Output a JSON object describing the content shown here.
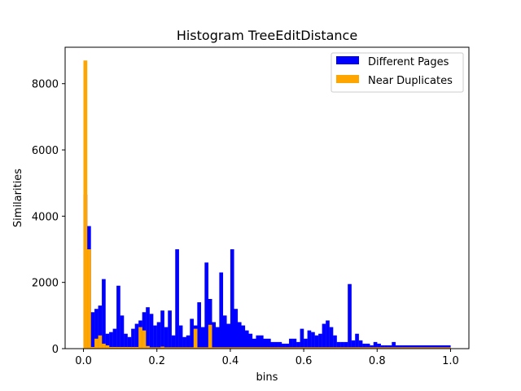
{
  "chart_data": {
    "type": "bar",
    "title": "Histogram TreeEditDistance",
    "xlabel": "bins",
    "ylabel": "Similarities",
    "xlim": [
      -0.05,
      1.05
    ],
    "ylim": [
      0,
      9100
    ],
    "xticks": [
      0.0,
      0.2,
      0.4,
      0.6,
      0.8,
      1.0
    ],
    "xtick_labels": [
      "0.0",
      "0.2",
      "0.4",
      "0.6",
      "0.8",
      "1.0"
    ],
    "yticks": [
      0,
      2000,
      4000,
      6000,
      8000
    ],
    "ytick_labels": [
      "0",
      "2000",
      "4000",
      "6000",
      "8000"
    ],
    "grid": false,
    "legend_position": "top-right",
    "bin_width": 0.01,
    "bin_starts": [
      0.0,
      0.01,
      0.02,
      0.03,
      0.04,
      0.05,
      0.06,
      0.07,
      0.08,
      0.09,
      0.1,
      0.11,
      0.12,
      0.13,
      0.14,
      0.15,
      0.16,
      0.17,
      0.18,
      0.19,
      0.2,
      0.21,
      0.22,
      0.23,
      0.24,
      0.25,
      0.26,
      0.27,
      0.28,
      0.29,
      0.3,
      0.31,
      0.32,
      0.33,
      0.34,
      0.35,
      0.36,
      0.37,
      0.38,
      0.39,
      0.4,
      0.41,
      0.42,
      0.43,
      0.44,
      0.45,
      0.46,
      0.47,
      0.48,
      0.49,
      0.5,
      0.51,
      0.52,
      0.53,
      0.54,
      0.55,
      0.56,
      0.57,
      0.58,
      0.59,
      0.6,
      0.61,
      0.62,
      0.63,
      0.64,
      0.65,
      0.66,
      0.67,
      0.68,
      0.69,
      0.7,
      0.71,
      0.72,
      0.73,
      0.74,
      0.75,
      0.76,
      0.77,
      0.78,
      0.79,
      0.8,
      0.81,
      0.82,
      0.83,
      0.84,
      0.85,
      0.86,
      0.87,
      0.88,
      0.89,
      0.9,
      0.91,
      0.92,
      0.93,
      0.94,
      0.95,
      0.96,
      0.97,
      0.98,
      0.99
    ],
    "series": [
      {
        "name": "Different Pages",
        "color": "#0000ff",
        "values": [
          4650,
          3700,
          1100,
          1200,
          1300,
          2100,
          450,
          500,
          600,
          1900,
          1000,
          450,
          350,
          600,
          750,
          850,
          1100,
          1250,
          1050,
          700,
          800,
          1150,
          650,
          1150,
          400,
          3000,
          700,
          350,
          400,
          900,
          700,
          1400,
          650,
          2600,
          1500,
          800,
          650,
          2300,
          1000,
          750,
          3000,
          1200,
          800,
          700,
          550,
          450,
          300,
          400,
          400,
          300,
          300,
          200,
          200,
          200,
          150,
          150,
          300,
          300,
          200,
          600,
          300,
          550,
          500,
          400,
          450,
          750,
          850,
          650,
          400,
          200,
          200,
          200,
          1950,
          250,
          450,
          250,
          150,
          150,
          100,
          200,
          150,
          100,
          100,
          100,
          200,
          100,
          100,
          100,
          100,
          100,
          100,
          100,
          100,
          100,
          100,
          100,
          100,
          100,
          100,
          100
        ]
      },
      {
        "name": "Near Duplicates",
        "color": "#ffa500",
        "values": [
          8700,
          3000,
          50,
          300,
          400,
          150,
          100,
          50,
          50,
          50,
          50,
          50,
          50,
          50,
          50,
          650,
          550,
          80,
          40,
          40,
          40,
          60,
          40,
          40,
          40,
          40,
          40,
          40,
          40,
          40,
          600,
          40,
          40,
          40,
          720,
          40,
          40,
          40,
          40,
          40,
          40,
          40,
          40,
          40,
          40,
          40,
          40,
          40,
          40,
          40,
          40,
          40,
          40,
          40,
          40,
          40,
          40,
          40,
          40,
          40,
          40,
          40,
          40,
          40,
          40,
          40,
          40,
          40,
          40,
          40,
          40,
          40,
          40,
          40,
          40,
          40,
          40,
          40,
          40,
          40,
          40,
          40,
          40,
          40,
          40,
          40,
          40,
          40,
          40,
          40,
          40,
          40,
          40,
          40,
          40,
          40,
          40,
          40,
          40,
          40,
          40
        ]
      }
    ]
  }
}
